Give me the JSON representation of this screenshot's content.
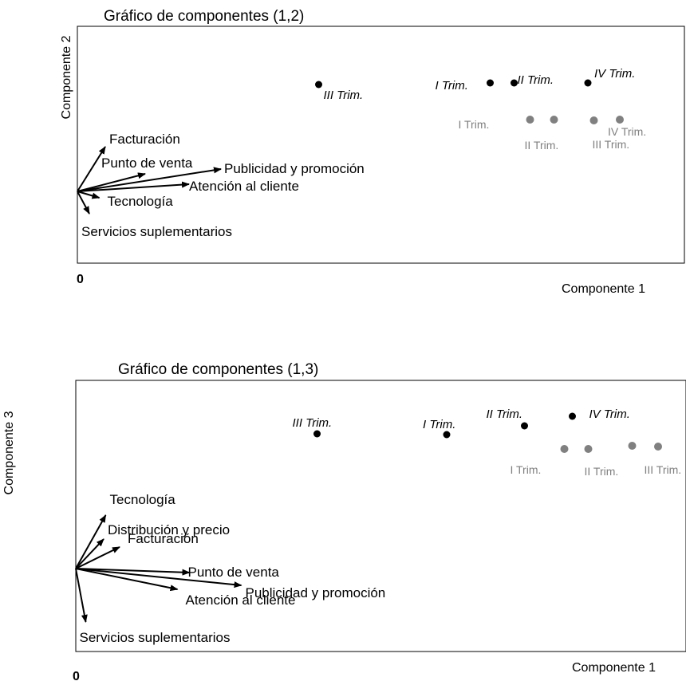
{
  "chart_data": [
    {
      "type": "scatter",
      "subtype": "biplot",
      "title": "Gráfico de componentes (1,2)",
      "xlabel": "Componente 1",
      "ylabel": "Componente 2",
      "origin_label": "0",
      "grid": false,
      "vectors": [
        {
          "label": "Facturación",
          "x": 0.14,
          "y": 0.56
        },
        {
          "label": "Punto de venta",
          "x": 0.34,
          "y": 0.22
        },
        {
          "label": "Publicidad y promoción",
          "x": 0.72,
          "y": 0.28
        },
        {
          "label": "Atención al cliente",
          "x": 0.56,
          "y": 0.09
        },
        {
          "label": "Tecnología",
          "x": 0.11,
          "y": -0.08
        },
        {
          "label": "Servicios suplementarios",
          "x": 0.06,
          "y": -0.28
        }
      ],
      "series": [
        {
          "color": "#000000",
          "points": [
            {
              "label": "III Trim.",
              "x": 1.21,
              "y": 1.34
            },
            {
              "label": "I Trim.",
              "x": 2.07,
              "y": 1.36
            },
            {
              "label": "II Trim.",
              "x": 2.19,
              "y": 1.36
            },
            {
              "label": "IV Trim.",
              "x": 2.56,
              "y": 1.36
            }
          ]
        },
        {
          "color": "#808080",
          "points": [
            {
              "label": "I Trim.",
              "x": 2.27,
              "y": 0.9
            },
            {
              "label": "II Trim.",
              "x": 2.39,
              "y": 0.9
            },
            {
              "label": "III Trim.",
              "x": 2.59,
              "y": 0.89
            },
            {
              "label": "IV Trim.",
              "x": 2.72,
              "y": 0.9
            }
          ]
        }
      ]
    },
    {
      "type": "scatter",
      "subtype": "biplot",
      "title": "Gráfico de componentes (1,3)",
      "xlabel": "Componente 1",
      "ylabel": "Componente 3",
      "origin_label": "0",
      "grid": false,
      "vectors": [
        {
          "label": "Tecnología",
          "x": 0.15,
          "y": 0.67
        },
        {
          "label": "Distribución y precio",
          "x": 0.14,
          "y": 0.37
        },
        {
          "label": "Facturación",
          "x": 0.22,
          "y": 0.27
        },
        {
          "label": "Punto de venta",
          "x": 0.57,
          "y": -0.05
        },
        {
          "label": "Publicidad y promoción",
          "x": 0.83,
          "y": -0.21
        },
        {
          "label": "Atención al cliente",
          "x": 0.51,
          "y": -0.26
        },
        {
          "label": "Servicios suplementarios",
          "x": 0.05,
          "y": -0.67
        }
      ],
      "series": [
        {
          "color": "#000000",
          "points": [
            {
              "label": "III Trim.",
              "x": 1.21,
              "y": 1.69
            },
            {
              "label": "I Trim.",
              "x": 1.86,
              "y": 1.68
            },
            {
              "label": "II Trim.",
              "x": 2.25,
              "y": 1.79
            },
            {
              "label": "IV Trim.",
              "x": 2.49,
              "y": 1.91
            }
          ]
        },
        {
          "color": "#808080",
          "points": [
            {
              "label": "I Trim.",
              "x": 2.45,
              "y": 1.5
            },
            {
              "label": "II Trim.",
              "x": 2.57,
              "y": 1.5
            },
            {
              "label": "III Trim.",
              "x": 2.79,
              "y": 1.54
            },
            {
              "label": "IV Trim.",
              "x": 2.92,
              "y": 1.53
            }
          ]
        }
      ]
    }
  ]
}
